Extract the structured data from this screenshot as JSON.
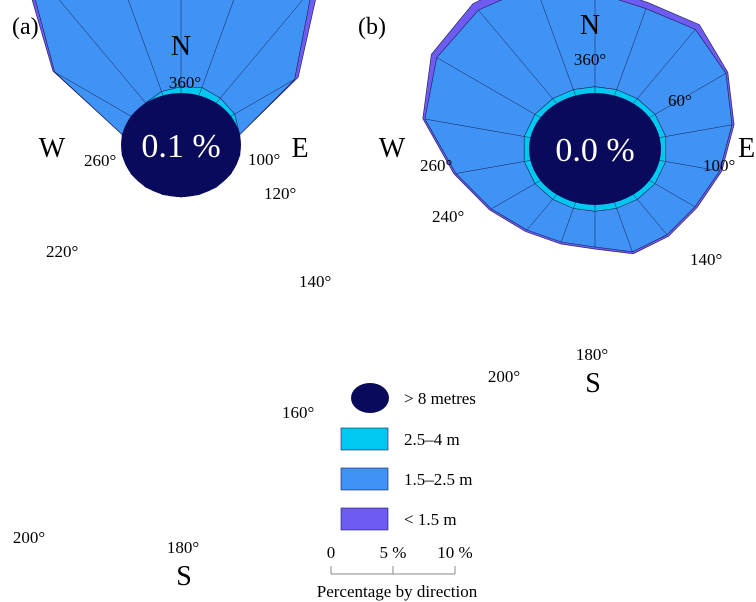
{
  "chart_data": [
    {
      "type": "wind-rose",
      "panel_label": "(a)",
      "calm_label": "0.1 %",
      "compass": {
        "north": "N",
        "south": "S",
        "west": "W",
        "east": "E"
      },
      "direction_labels": [
        "360°",
        "100°",
        "120°",
        "140°",
        "160°",
        "180°",
        "200°",
        "220°",
        "260°"
      ],
      "sector_directions_deg": [
        0,
        20,
        40,
        60,
        80,
        100,
        120,
        140,
        160,
        180,
        200,
        220,
        240,
        260,
        280,
        300,
        320,
        340
      ],
      "series": [
        {
          "name": "2.5–4 m",
          "values": [
            0,
            0,
            0,
            0,
            0,
            0,
            0.2,
            0.3,
            0.4,
            0.3,
            0.2,
            0,
            0,
            0,
            0,
            0,
            0,
            0
          ]
        },
        {
          "name": "1.5–2.5 m",
          "values": [
            0,
            0,
            0,
            0,
            0,
            0,
            3.3,
            6.8,
            11.6,
            12.4,
            12.7,
            9.0,
            4.2,
            0,
            0,
            0,
            0,
            0
          ]
        },
        {
          "name": "< 1.5 m",
          "values": [
            0,
            0,
            0,
            0,
            0,
            0,
            0.2,
            0.6,
            1.9,
            6.3,
            5.3,
            0.5,
            0.1,
            0,
            0,
            0,
            0,
            0
          ]
        }
      ]
    },
    {
      "type": "wind-rose",
      "panel_label": "(b)",
      "calm_label": "0.0 %",
      "compass": {
        "north": "N",
        "south": "S",
        "west": "W",
        "east": "E"
      },
      "direction_labels": [
        "360°",
        "60°",
        "100°",
        "140°",
        "180°",
        "200°",
        "240°",
        "260°"
      ],
      "sector_directions_deg": [
        0,
        20,
        40,
        60,
        80,
        100,
        120,
        140,
        160,
        180,
        200,
        220,
        240,
        260,
        280,
        300,
        320,
        340
      ],
      "series": [
        {
          "name": "2.5–4 m",
          "values": [
            0.3,
            0.3,
            0.3,
            0.3,
            0.3,
            0.3,
            0.3,
            0.3,
            0.3,
            0.3,
            0.3,
            0.3,
            0.3,
            0.3,
            0.3,
            0.3,
            0.3,
            0.3
          ]
        },
        {
          "name": "1.5–2.5 m",
          "values": [
            1.7,
            2.2,
            2.2,
            2.2,
            2.6,
            3.2,
            3.9,
            4.3,
            4.1,
            4.5,
            5.3,
            5.5,
            5.4,
            4.8,
            3.3,
            2.4,
            1.9,
            1.7
          ]
        },
        {
          "name": "< 1.5 m",
          "values": [
            0.1,
            0.1,
            0.1,
            0.1,
            0.1,
            0.1,
            0.1,
            0.3,
            0.3,
            0.4,
            0.5,
            0.4,
            0.3,
            0.1,
            0.1,
            0.1,
            0.1,
            0.1
          ]
        }
      ]
    }
  ],
  "legend": {
    "items": [
      {
        "label": "> 8 metres",
        "color": "#0a0a5c",
        "shape": "ellipse"
      },
      {
        "label": "2.5–4 m",
        "color": "#00c8f0",
        "shape": "rect"
      },
      {
        "label": "1.5–2.5 m",
        "color": "#3f93f5",
        "shape": "rect"
      },
      {
        "label": "< 1.5 m",
        "color": "#6e5cf2",
        "shape": "rect"
      }
    ]
  },
  "scale": {
    "ticks": [
      "0",
      "5 %",
      "10 %"
    ],
    "title": "Percentage by direction"
  },
  "colors": {
    "calm": "#0a0a5c",
    "band_2_5_4": "#00c8f0",
    "band_1_5_2_5": "#3f93f5",
    "band_lt_1_5": "#6e5cf2",
    "outline": "#1a1a50"
  }
}
